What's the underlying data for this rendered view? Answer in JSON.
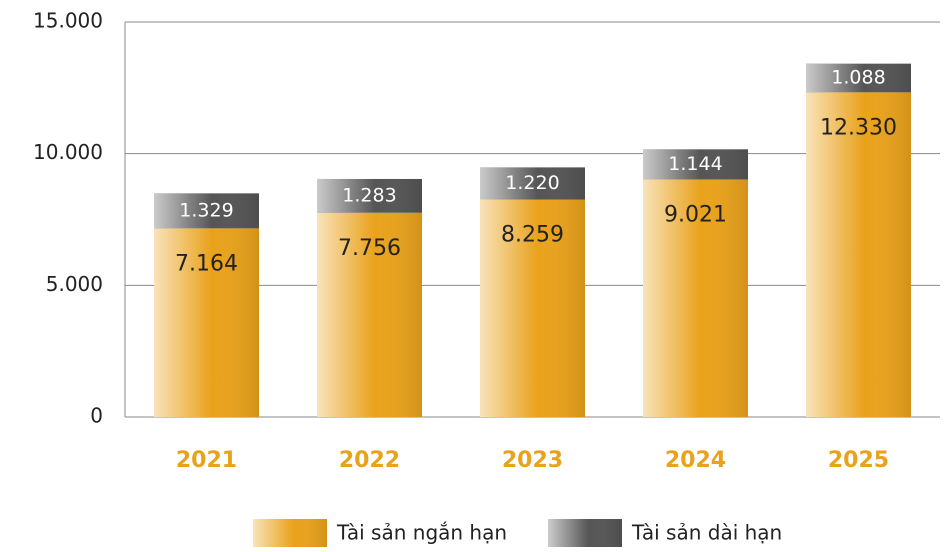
{
  "chart_data": {
    "type": "stacked_bar",
    "categories": [
      "2021",
      "2022",
      "2023",
      "2024",
      "2025"
    ],
    "series": [
      {
        "name": "Tài sản ngắn hạn",
        "color": "#e9a21b",
        "values": [
          7164,
          7756,
          8259,
          9021,
          12330
        ],
        "value_labels": [
          "7.164",
          "7.756",
          "8.259",
          "9.021",
          "12.330"
        ]
      },
      {
        "name": "Tài sản dài hạn",
        "color": "#555555",
        "values": [
          1329,
          1283,
          1220,
          1144,
          1088
        ],
        "value_labels": [
          "1.329",
          "1.283",
          "1.220",
          "1.144",
          "1.088"
        ]
      }
    ],
    "ylim": [
      0,
      15000
    ],
    "yticks": [
      0,
      {
        "value": 5000,
        "label": "5.000"
      },
      {
        "value": 10000,
        "label": "10.000"
      },
      {
        "value": 15000,
        "label": "15.000"
      }
    ],
    "grid": true,
    "legend": "bottom"
  }
}
